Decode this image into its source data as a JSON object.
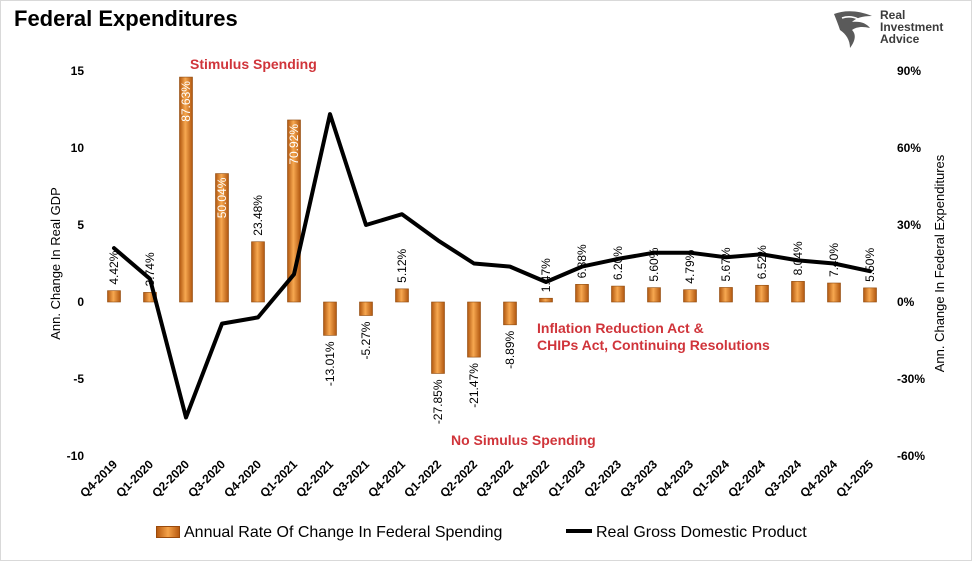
{
  "title": "Federal Expenditures",
  "logo": {
    "line1": "Real",
    "line2": "Investment",
    "line3": "Advice"
  },
  "chart_data": {
    "type": "bar",
    "categories": [
      "Q4-2019",
      "Q1-2020",
      "Q2-2020",
      "Q3-2020",
      "Q4-2020",
      "Q1-2021",
      "Q2-2021",
      "Q3-2021",
      "Q4-2021",
      "Q1-2022",
      "Q2-2022",
      "Q3-2022",
      "Q4-2022",
      "Q1-2023",
      "Q2-2023",
      "Q3-2023",
      "Q4-2023",
      "Q1-2024",
      "Q2-2024",
      "Q3-2024",
      "Q4-2024",
      "Q1-2025"
    ],
    "series": [
      {
        "name": "Annual Rate Of Change In Federal Spending",
        "type": "bar",
        "axis": "right",
        "color": "#e07b20",
        "values": [
          4.42,
          3.74,
          87.63,
          50.04,
          23.48,
          70.92,
          -13.01,
          -5.27,
          5.12,
          -27.85,
          -21.47,
          -8.89,
          1.47,
          6.88,
          6.2,
          5.6,
          4.79,
          5.67,
          6.52,
          8.04,
          7.4,
          5.5
        ],
        "labels": [
          "4.42%",
          "3.74%",
          "87.63%",
          "50.04%",
          "23.48%",
          "70.92%",
          "-13.01%",
          "-5.27%",
          "5.12%",
          "-27.85%",
          "-21.47%",
          "-8.89%",
          "1.47%",
          "6.88%",
          "6.20%",
          "5.60%",
          "4.79%",
          "5.67%",
          "6.52%",
          "8.04%",
          "7.40%",
          "5.50%"
        ]
      },
      {
        "name": "Real Gross Domestic Product",
        "type": "line",
        "axis": "left",
        "color": "#000000",
        "values": [
          3.5,
          1.5,
          -7.5,
          -1.4,
          -1.0,
          1.8,
          12.2,
          5.0,
          5.7,
          4.0,
          2.5,
          2.3,
          1.3,
          2.3,
          2.8,
          3.2,
          3.2,
          2.9,
          3.1,
          2.7,
          2.5,
          2.0
        ]
      }
    ],
    "y_left": {
      "label": "Ann. Change In Real GDP",
      "ticks": [
        "15",
        "10",
        "5",
        "0",
        "-5",
        "-10"
      ],
      "range": [
        -10,
        15
      ]
    },
    "y_right": {
      "label": "Ann. Change In Federal Expenditures",
      "ticks": [
        "90%",
        "60%",
        "30%",
        "0%",
        "-30%",
        "-60%"
      ],
      "range": [
        -60,
        90
      ]
    },
    "annotations": {
      "stimulus": "Stimulus Spending",
      "no_stimulus": "No Simulus Spending",
      "inflation_line1": "Inflation Reduction Act &",
      "inflation_line2": "CHIPs Act, Continuing Resolutions"
    },
    "annotation_color": "#d0343a",
    "legend_position": "bottom",
    "grid": false
  }
}
